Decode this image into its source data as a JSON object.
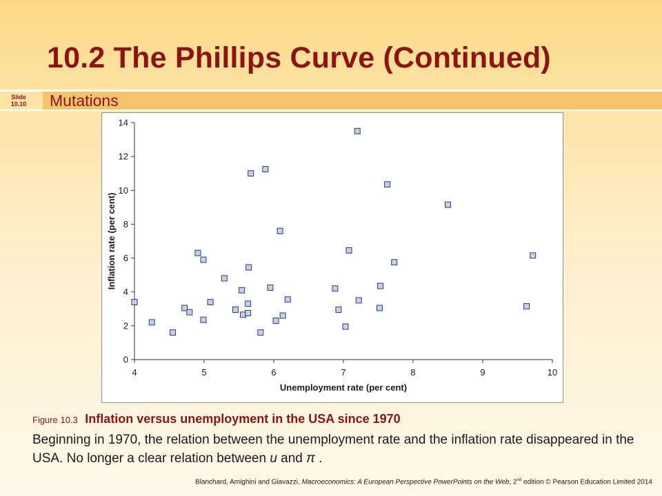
{
  "slide": {
    "title": "10.2  The Phillips Curve (Continued)",
    "subtitle": "Mutations",
    "slide_label_line1": "Slide",
    "slide_label_line2": "10.10"
  },
  "caption": {
    "figure_label": "Figure 10.3",
    "figure_title": "Inflation versus unemployment in the USA since 1970",
    "body_part1": "Beginning in 1970, the relation between the unemployment rate and the inflation rate disappeared in the USA. No longer a clear relation between ",
    "body_var1": "u",
    "body_part2": " and ",
    "body_var2": "π",
    "body_part3": " ."
  },
  "footer": {
    "authors": "Blanchard, Amighini and Giavazzi, ",
    "book": "Macroeconomics: A European Perspective PowerPoints on the Web",
    "edition_pre": ", 2",
    "edition_sup": "nd",
    "rest": " edition © Pearson Education Limited 2014"
  },
  "colors": {
    "title": "#8b1414",
    "marker_fill": "#c5cfe8",
    "marker_stroke": "#2c3e66",
    "band": "#f7c46d"
  },
  "chart_data": {
    "type": "scatter",
    "xlabel": "Unemployment rate (per cent)",
    "ylabel": "Inflation rate (per cent)",
    "xlim": [
      4,
      10
    ],
    "ylim": [
      0,
      14
    ],
    "xticks": [
      4,
      5,
      6,
      7,
      8,
      9,
      10
    ],
    "yticks": [
      0,
      2,
      4,
      6,
      8,
      10,
      12,
      14
    ],
    "grid": false,
    "marker": "square",
    "points": [
      {
        "x": 4.0,
        "y": 3.4
      },
      {
        "x": 4.25,
        "y": 2.2
      },
      {
        "x": 4.55,
        "y": 1.6
      },
      {
        "x": 4.72,
        "y": 3.05
      },
      {
        "x": 4.79,
        "y": 2.8
      },
      {
        "x": 4.91,
        "y": 6.3
      },
      {
        "x": 4.99,
        "y": 2.35
      },
      {
        "x": 4.99,
        "y": 5.9
      },
      {
        "x": 5.09,
        "y": 3.4
      },
      {
        "x": 5.29,
        "y": 4.8
      },
      {
        "x": 5.45,
        "y": 2.95
      },
      {
        "x": 5.54,
        "y": 4.1
      },
      {
        "x": 5.56,
        "y": 2.65
      },
      {
        "x": 5.63,
        "y": 3.3
      },
      {
        "x": 5.63,
        "y": 2.75
      },
      {
        "x": 5.64,
        "y": 5.45
      },
      {
        "x": 5.67,
        "y": 11.0
      },
      {
        "x": 5.81,
        "y": 1.6
      },
      {
        "x": 5.88,
        "y": 11.25
      },
      {
        "x": 5.95,
        "y": 4.25
      },
      {
        "x": 6.03,
        "y": 2.3
      },
      {
        "x": 6.09,
        "y": 7.6
      },
      {
        "x": 6.13,
        "y": 2.6
      },
      {
        "x": 6.2,
        "y": 3.55
      },
      {
        "x": 6.88,
        "y": 4.2
      },
      {
        "x": 6.93,
        "y": 2.95
      },
      {
        "x": 7.03,
        "y": 1.95
      },
      {
        "x": 7.08,
        "y": 6.45
      },
      {
        "x": 7.2,
        "y": 13.5
      },
      {
        "x": 7.22,
        "y": 3.5
      },
      {
        "x": 7.52,
        "y": 3.05
      },
      {
        "x": 7.53,
        "y": 4.35
      },
      {
        "x": 7.63,
        "y": 10.35
      },
      {
        "x": 7.73,
        "y": 5.75
      },
      {
        "x": 8.5,
        "y": 9.15
      },
      {
        "x": 9.63,
        "y": 3.15
      },
      {
        "x": 9.72,
        "y": 6.15
      }
    ]
  }
}
